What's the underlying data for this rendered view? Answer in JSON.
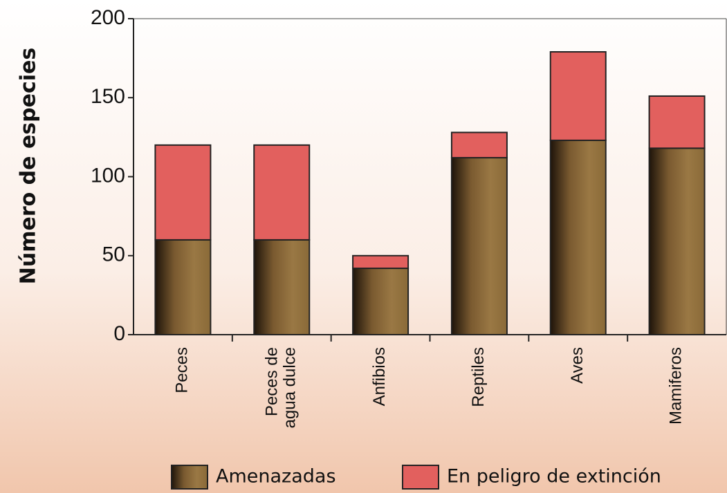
{
  "chart_data": {
    "type": "stacked_bar",
    "y_label": "Número de especies",
    "categories": [
      "Peces",
      "Peces de\nagua dulce",
      "Anfibios",
      "Reptiles",
      "Aves",
      "Mamiferos"
    ],
    "series": [
      {
        "name": "Amenazadas",
        "color": "#8f6d3a",
        "values": [
          60,
          60,
          42,
          112,
          123,
          118
        ]
      },
      {
        "name": "En peligro de extinción",
        "color": "#e2605e",
        "values": [
          60,
          60,
          8,
          16,
          56,
          33
        ]
      }
    ],
    "ylim": [
      0,
      200
    ],
    "yticks": [
      0,
      50,
      100,
      150,
      200
    ],
    "legend": "bottom"
  }
}
